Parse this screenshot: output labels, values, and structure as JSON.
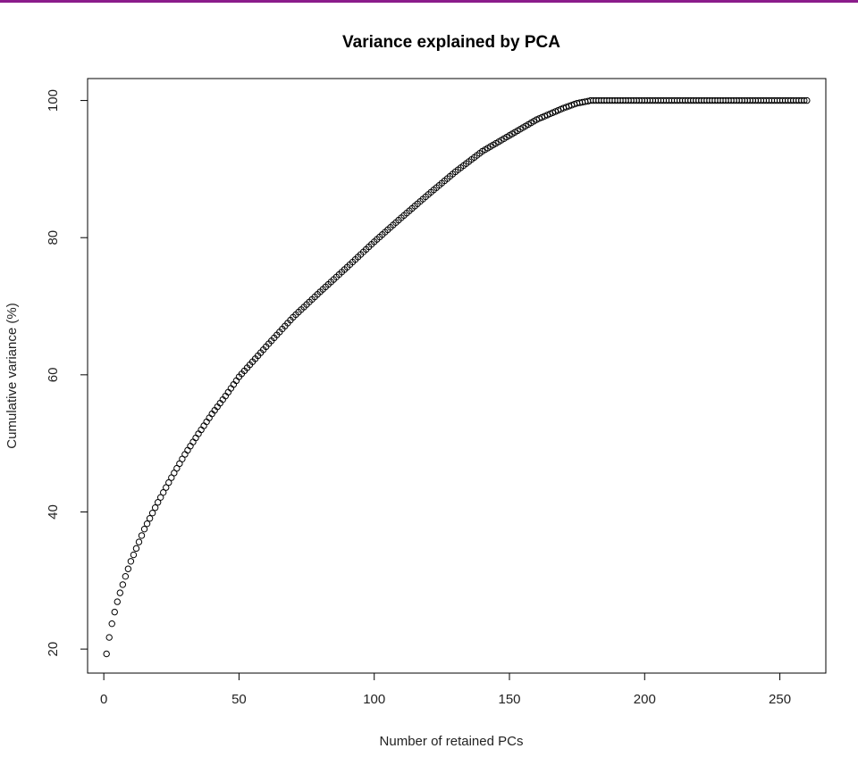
{
  "chart_data": {
    "type": "scatter",
    "title": "Variance explained by PCA",
    "xlabel": "Number of retained PCs",
    "ylabel": "Cumulative variance (%)",
    "xlim": [
      -6,
      267
    ],
    "ylim": [
      16.5,
      103.2
    ],
    "xticks": [
      0,
      50,
      100,
      150,
      200,
      250
    ],
    "yticks": [
      20,
      40,
      60,
      80,
      100
    ],
    "grid": false,
    "legend": "none",
    "marker": "open-circle",
    "n_points": 260,
    "curve_anchors": {
      "x": [
        1,
        2,
        3,
        4,
        5,
        6,
        8,
        10,
        15,
        20,
        25,
        30,
        35,
        40,
        45,
        50,
        60,
        70,
        80,
        90,
        100,
        110,
        120,
        130,
        140,
        150,
        160,
        170,
        175,
        179,
        180,
        200,
        220,
        240,
        260
      ],
      "y": [
        19.3,
        21.7,
        23.7,
        25.4,
        26.9,
        28.2,
        30.6,
        32.8,
        37.5,
        41.4,
        45.0,
        48.4,
        51.4,
        54.3,
        56.9,
        59.7,
        64.1,
        68.4,
        72.1,
        75.7,
        79.4,
        82.9,
        86.3,
        89.6,
        92.6,
        94.9,
        97.2,
        98.9,
        99.6,
        99.9,
        100,
        100,
        100,
        100,
        100
      ]
    }
  }
}
